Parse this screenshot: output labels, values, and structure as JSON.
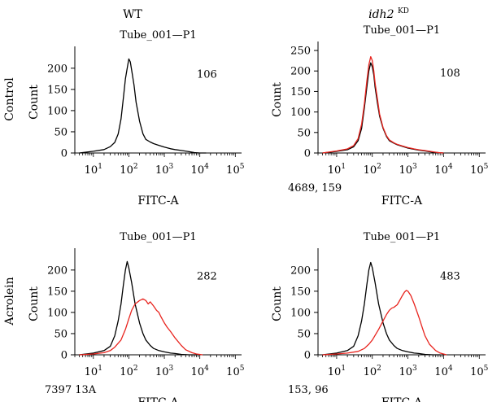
{
  "figure": {
    "column_headers": [
      "WT",
      "idh2KD"
    ],
    "column_header_main": [
      "WT",
      "idh2"
    ],
    "column_header_sup": [
      "",
      "KD"
    ],
    "row_labels": [
      "Control",
      "Acrolein"
    ]
  },
  "chart_data": [
    {
      "type": "line",
      "panel": "WT / Control",
      "title": "Tube_001—P1",
      "xlabel": "FITC-A",
      "ylabel": "Count",
      "xscale": "log",
      "xlim": [
        3,
        150000
      ],
      "ylim": [
        0,
        240
      ],
      "yticks": [
        0,
        50,
        100,
        150,
        200
      ],
      "xtick_exponents": [
        1,
        2,
        3,
        4,
        5
      ],
      "annotation": "106",
      "footnote": "",
      "series": [
        {
          "color": "#000000",
          "x": [
            4,
            10,
            20,
            30,
            40,
            50,
            60,
            70,
            80,
            90,
            100,
            110,
            120,
            140,
            160,
            200,
            250,
            300,
            400,
            500,
            700,
            1000,
            1500,
            2000,
            3000,
            5000,
            7000,
            10000,
            15000
          ],
          "values": [
            0,
            4,
            8,
            15,
            25,
            45,
            80,
            130,
            175,
            200,
            222,
            215,
            195,
            160,
            120,
            75,
            45,
            32,
            26,
            22,
            18,
            14,
            10,
            8,
            6,
            3,
            1,
            0,
            0
          ]
        }
      ]
    },
    {
      "type": "line",
      "panel": "idh2KD / Control",
      "title": "Tube_001—P1",
      "xlabel": "FITC-A",
      "ylabel": "Count",
      "xscale": "log",
      "xlim": [
        3,
        150000
      ],
      "ylim": [
        0,
        260
      ],
      "yticks": [
        0,
        50,
        100,
        150,
        200,
        250
      ],
      "xtick_exponents": [
        1,
        2,
        3,
        4,
        5
      ],
      "annotation": "108",
      "footnote": "4689, 159",
      "series": [
        {
          "color": "#000000",
          "x": [
            4,
            10,
            20,
            30,
            40,
            50,
            60,
            70,
            80,
            90,
            100,
            110,
            120,
            140,
            160,
            200,
            250,
            300,
            400,
            500,
            700,
            1000,
            1500,
            2000,
            3000,
            5000,
            7000,
            10000
          ],
          "values": [
            0,
            4,
            8,
            15,
            30,
            60,
            110,
            160,
            200,
            220,
            210,
            190,
            160,
            120,
            90,
            60,
            40,
            30,
            24,
            20,
            16,
            12,
            9,
            7,
            5,
            2,
            1,
            0
          ]
        },
        {
          "color": "#e8241e",
          "x": [
            4,
            10,
            20,
            30,
            40,
            50,
            60,
            70,
            80,
            90,
            100,
            110,
            120,
            140,
            160,
            200,
            250,
            300,
            400,
            500,
            700,
            1000,
            1500,
            2000,
            3000,
            5000,
            7000,
            10000
          ],
          "values": [
            0,
            5,
            10,
            18,
            35,
            70,
            120,
            175,
            215,
            235,
            225,
            200,
            170,
            130,
            95,
            62,
            42,
            32,
            25,
            21,
            17,
            13,
            10,
            8,
            6,
            3,
            1,
            0
          ]
        }
      ]
    },
    {
      "type": "line",
      "panel": "WT / Acrolein",
      "title": "Tube_001—P1",
      "xlabel": "FITC-A",
      "ylabel": "Count",
      "xscale": "log",
      "xlim": [
        3,
        150000
      ],
      "ylim": [
        0,
        240
      ],
      "yticks": [
        0,
        50,
        100,
        150,
        200
      ],
      "xtick_exponents": [
        1,
        2,
        3,
        4,
        5
      ],
      "annotation": "282",
      "footnote": "7397 13A",
      "series": [
        {
          "color": "#000000",
          "x": [
            4,
            10,
            20,
            30,
            40,
            50,
            60,
            70,
            80,
            90,
            100,
            120,
            150,
            200,
            250,
            300,
            400,
            500,
            700,
            1000,
            1500,
            2000,
            3000,
            5000,
            8000
          ],
          "values": [
            0,
            4,
            10,
            20,
            45,
            80,
            120,
            165,
            200,
            220,
            205,
            170,
            120,
            75,
            50,
            35,
            22,
            15,
            10,
            7,
            4,
            3,
            1,
            0,
            0
          ]
        },
        {
          "color": "#e8241e",
          "x": [
            4,
            10,
            20,
            30,
            40,
            60,
            80,
            100,
            120,
            150,
            200,
            250,
            300,
            350,
            400,
            500,
            600,
            700,
            800,
            1000,
            1200,
            1500,
            2000,
            3000,
            4000,
            6000,
            8000,
            12000
          ],
          "values": [
            0,
            2,
            5,
            10,
            18,
            35,
            60,
            85,
            105,
            120,
            128,
            132,
            128,
            120,
            125,
            115,
            105,
            100,
            90,
            75,
            65,
            55,
            40,
            22,
            12,
            5,
            2,
            0
          ]
        }
      ]
    },
    {
      "type": "line",
      "panel": "idh2KD / Acrolein",
      "title": "Tube_001—P1",
      "xlabel": "FITC-A",
      "ylabel": "Count",
      "xscale": "log",
      "xlim": [
        3,
        150000
      ],
      "ylim": [
        0,
        240
      ],
      "yticks": [
        0,
        50,
        100,
        150,
        200
      ],
      "xtick_exponents": [
        1,
        2,
        3,
        4,
        5
      ],
      "annotation": "483",
      "footnote": "153, 96",
      "series": [
        {
          "color": "#000000",
          "x": [
            4,
            10,
            20,
            30,
            40,
            50,
            60,
            70,
            80,
            90,
            100,
            120,
            150,
            200,
            250,
            300,
            400,
            500,
            700,
            1000,
            1500,
            2000,
            3000,
            5000,
            8000
          ],
          "values": [
            0,
            4,
            10,
            20,
            45,
            80,
            120,
            165,
            200,
            218,
            205,
            170,
            120,
            75,
            50,
            35,
            22,
            15,
            10,
            7,
            4,
            3,
            1,
            0,
            0
          ]
        },
        {
          "color": "#e8241e",
          "x": [
            4,
            10,
            20,
            40,
            60,
            80,
            100,
            150,
            200,
            250,
            300,
            350,
            400,
            500,
            600,
            700,
            800,
            900,
            1000,
            1200,
            1500,
            2000,
            2500,
            3000,
            4000,
            6000,
            8000,
            12000
          ],
          "values": [
            0,
            2,
            4,
            8,
            15,
            25,
            35,
            60,
            80,
            95,
            105,
            110,
            112,
            118,
            130,
            140,
            148,
            152,
            150,
            140,
            120,
            90,
            65,
            45,
            25,
            10,
            4,
            0
          ]
        }
      ]
    }
  ]
}
